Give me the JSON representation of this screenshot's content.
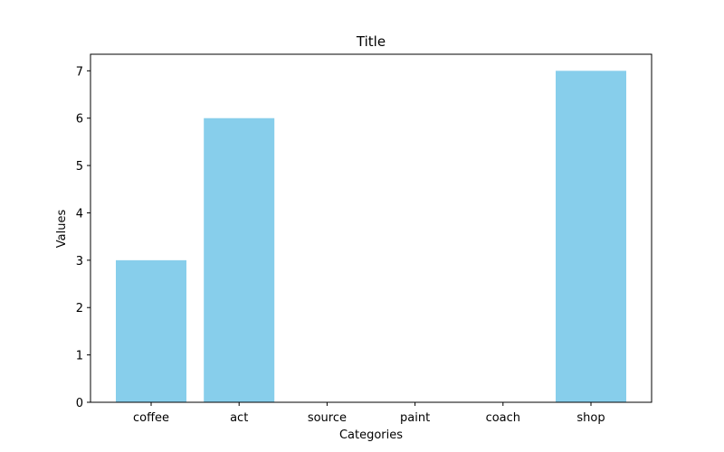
{
  "chart_data": {
    "type": "bar",
    "title": "Title",
    "xlabel": "Categories",
    "ylabel": "Values",
    "categories": [
      "coffee",
      "act",
      "source",
      "paint",
      "coach",
      "shop"
    ],
    "values": [
      3,
      6,
      0,
      0,
      0,
      7
    ],
    "ylim": [
      0,
      7.35
    ],
    "yticks": [
      0,
      1,
      2,
      3,
      4,
      5,
      6,
      7
    ],
    "grid": false,
    "bar_color": "#87CEEB"
  }
}
